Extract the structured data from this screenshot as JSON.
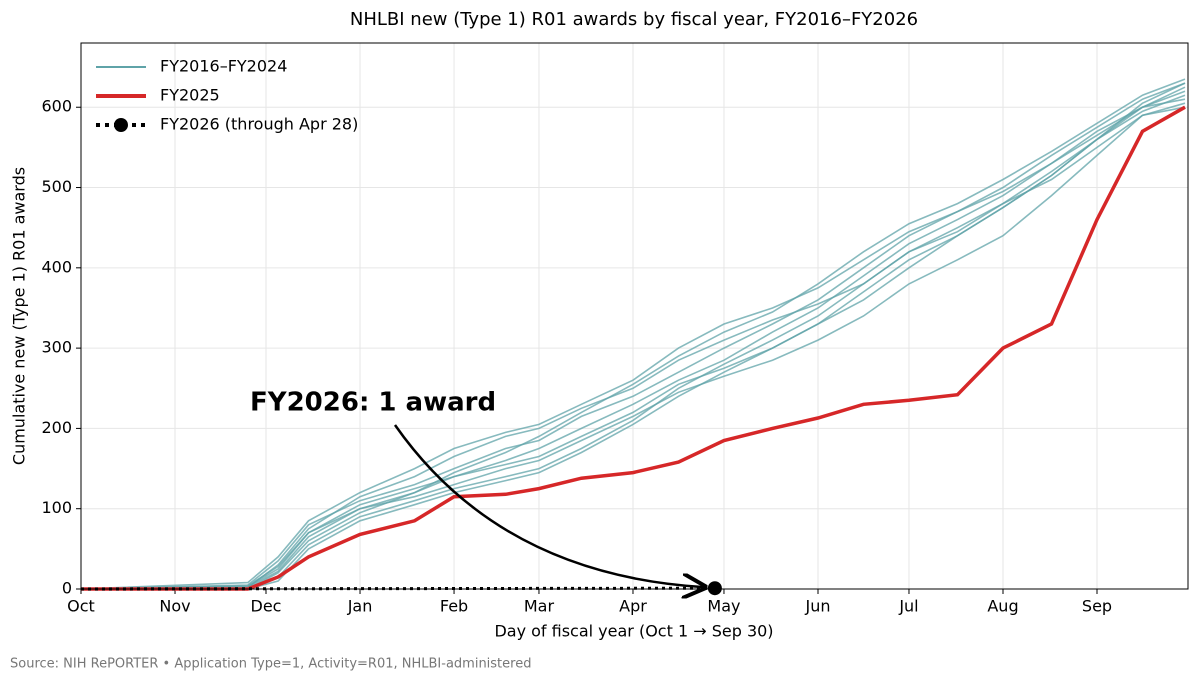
{
  "chart_data": {
    "type": "line",
    "title": "NHLBI new (Type 1) R01 awards by fiscal year, FY2016–FY2026",
    "x_label": "Day of fiscal year (Oct 1 → Sep 30)",
    "y_label": "Cumulative new (Type 1) R01 awards",
    "annotation": "FY2026: 1 award",
    "source": "Source: NIH RePORTER  •  Application Type=1, Activity=R01, NHLBI-administered",
    "xlim": [
      0,
      365
    ],
    "ylim": [
      0,
      680
    ],
    "xticks": [
      {
        "value": 0,
        "label": "Oct"
      },
      {
        "value": 31,
        "label": "Nov"
      },
      {
        "value": 61,
        "label": "Dec"
      },
      {
        "value": 92,
        "label": "Jan"
      },
      {
        "value": 123,
        "label": "Feb"
      },
      {
        "value": 151,
        "label": "Mar"
      },
      {
        "value": 182,
        "label": "Apr"
      },
      {
        "value": 212,
        "label": "May"
      },
      {
        "value": 243,
        "label": "Jun"
      },
      {
        "value": 273,
        "label": "Jul"
      },
      {
        "value": 304,
        "label": "Aug"
      },
      {
        "value": 335,
        "label": "Sep"
      }
    ],
    "yticks": [
      0,
      100,
      200,
      300,
      400,
      500,
      600
    ],
    "grid": true,
    "legend": "upper-left",
    "x": [
      0,
      55,
      65,
      75,
      92,
      110,
      123,
      140,
      151,
      165,
      182,
      197,
      212,
      228,
      243,
      258,
      273,
      289,
      304,
      320,
      335,
      350,
      364
    ],
    "series": [
      {
        "name": "FY2016–FY2024",
        "color": "#5fa3a8",
        "lines": [
          [
            0,
            2,
            30,
            75,
            115,
            140,
            165,
            190,
            200,
            225,
            250,
            285,
            310,
            335,
            355,
            380,
            420,
            445,
            480,
            520,
            560,
            600,
            620
          ],
          [
            0,
            5,
            35,
            80,
            110,
            130,
            150,
            175,
            185,
            215,
            240,
            270,
            300,
            330,
            360,
            400,
            440,
            470,
            500,
            540,
            575,
            610,
            630
          ],
          [
            0,
            0,
            20,
            60,
            95,
            120,
            145,
            170,
            190,
            220,
            255,
            290,
            320,
            345,
            380,
            420,
            455,
            480,
            510,
            545,
            580,
            615,
            635
          ],
          [
            0,
            3,
            25,
            70,
            100,
            120,
            140,
            160,
            175,
            200,
            230,
            260,
            285,
            320,
            350,
            390,
            430,
            460,
            490,
            530,
            570,
            600,
            610
          ],
          [
            0,
            0,
            15,
            55,
            90,
            110,
            125,
            140,
            150,
            175,
            210,
            250,
            280,
            310,
            340,
            380,
            420,
            450,
            480,
            510,
            550,
            590,
            605
          ],
          [
            0,
            8,
            40,
            85,
            120,
            150,
            175,
            195,
            205,
            230,
            260,
            300,
            330,
            350,
            375,
            410,
            445,
            470,
            495,
            530,
            565,
            600,
            625
          ],
          [
            0,
            0,
            10,
            50,
            85,
            105,
            120,
            135,
            145,
            170,
            205,
            240,
            270,
            300,
            330,
            370,
            410,
            440,
            475,
            515,
            560,
            595,
            615
          ],
          [
            0,
            4,
            28,
            70,
            105,
            125,
            140,
            155,
            165,
            190,
            220,
            255,
            275,
            300,
            330,
            360,
            400,
            440,
            475,
            515,
            560,
            605,
            630
          ],
          [
            0,
            2,
            22,
            65,
            100,
            115,
            130,
            150,
            160,
            185,
            215,
            245,
            265,
            285,
            310,
            340,
            380,
            410,
            440,
            490,
            540,
            590,
            600
          ]
        ]
      },
      {
        "name": "FY2025",
        "color": "#d62728",
        "values": [
          0,
          0,
          15,
          40,
          68,
          85,
          115,
          118,
          125,
          138,
          145,
          158,
          185,
          200,
          213,
          230,
          235,
          242,
          300,
          330,
          460,
          570,
          600
        ]
      },
      {
        "name": "FY2026 (through Apr 28)",
        "color": "#000000",
        "dotted": true,
        "x": [
          0,
          209
        ],
        "values": [
          0,
          1
        ]
      }
    ]
  }
}
